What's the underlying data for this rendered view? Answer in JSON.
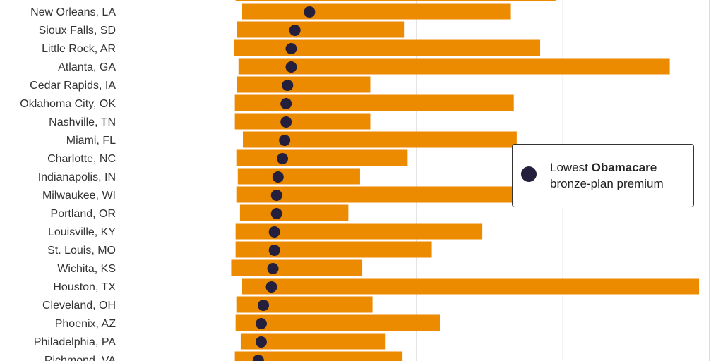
{
  "chart_data": {
    "type": "bar",
    "categories": [
      "New Orleans, LA",
      "Sioux Falls, SD",
      "Little Rock, AR",
      "Atlanta, GA",
      "Cedar Rapids, IA",
      "Oklahoma City, OK",
      "Nashville, TN",
      "Miami, FL",
      "Charlotte, NC",
      "Indianapolis, IN",
      "Milwaukee, WI",
      "Portland, OR",
      "Louisville, KY",
      "St. Louis, MO",
      "Wichita, KS",
      "Houston, TX",
      "Cleveland, OH",
      "Phoenix, AZ",
      "Philadelphia, PA",
      "Richmond, VA"
    ],
    "series": [
      {
        "range_low": [
          1.62,
          1.55,
          1.51,
          1.57,
          1.55,
          1.52,
          1.52,
          1.63,
          1.54,
          1.56,
          1.54,
          1.59,
          1.53,
          1.53,
          1.47,
          1.62,
          1.54,
          1.53,
          1.6,
          1.52
        ],
        "range_high": [
          5.29,
          3.83,
          5.69,
          7.46,
          3.37,
          5.33,
          3.37,
          5.37,
          3.88,
          3.23,
          5.87,
          3.07,
          4.9,
          4.21,
          3.26,
          7.86,
          3.4,
          4.32,
          3.57,
          3.81
        ]
      },
      {
        "name": "Lowest Obamacare bronze-plan premium",
        "values": [
          2.54,
          2.34,
          2.29,
          2.29,
          2.24,
          2.22,
          2.22,
          2.2,
          2.17,
          2.11,
          2.09,
          2.09,
          2.06,
          2.06,
          2.04,
          2.02,
          1.91,
          1.88,
          1.88,
          1.84
        ]
      }
    ],
    "xlim": [
      0,
      10
    ],
    "xgrid": true,
    "colors": {
      "bar": "#ec8a00",
      "dot": "#241f3c",
      "grid": "#d9d9d9",
      "label": "#333333"
    },
    "legend": {
      "position": "right",
      "line1_prefix": "Lowest ",
      "line1_bold": "Obamacare",
      "line2": "bronze-plan premium"
    }
  }
}
